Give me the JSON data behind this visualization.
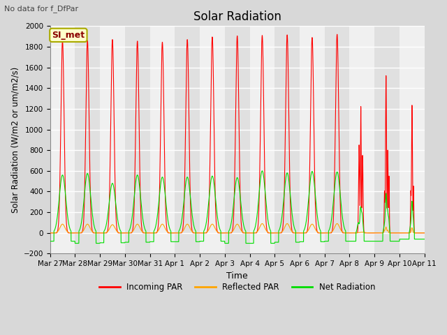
{
  "title": "Solar Radiation",
  "subtitle": "No data for f_DfPar",
  "xlabel": "Time",
  "ylabel": "Solar Radiation (W/m2 or um/m2/s)",
  "ylim": [
    -200,
    2000
  ],
  "yticks": [
    -200,
    0,
    200,
    400,
    600,
    800,
    1000,
    1200,
    1400,
    1600,
    1800,
    2000
  ],
  "bg_color": "#d8d8d8",
  "plot_bg_color_light": "#f0f0f0",
  "plot_bg_color_dark": "#e0e0e0",
  "incoming_color": "#ff0000",
  "reflected_color": "#ffa500",
  "net_color": "#00dd00",
  "legend_label": "SI_met",
  "x_tick_labels": [
    "Mar 27",
    "Mar 28",
    "Mar 29",
    "Mar 30",
    "Mar 31",
    "Apr 1",
    "Apr 2",
    "Apr 3",
    "Apr 4",
    "Apr 5",
    "Apr 6",
    "Apr 7",
    "Apr 8",
    "Apr 9",
    "Apr 10",
    "Apr 11"
  ],
  "n_days": 15,
  "incoming_peaks": [
    1860,
    1860,
    1870,
    1855,
    1845,
    1870,
    1895,
    1905,
    1910,
    1915,
    1890,
    1920,
    1220,
    1520,
    1240
  ],
  "net_peaks": [
    560,
    575,
    480,
    560,
    540,
    540,
    550,
    535,
    600,
    580,
    595,
    590,
    60,
    290,
    300
  ],
  "reflected_peaks": [
    85,
    85,
    80,
    85,
    85,
    85,
    85,
    85,
    90,
    90,
    85,
    90,
    25,
    45,
    50
  ],
  "net_troughs": [
    -80,
    -100,
    -95,
    -90,
    -85,
    -85,
    -80,
    -100,
    -100,
    -90,
    -85,
    -80,
    -80,
    -80,
    -60
  ]
}
